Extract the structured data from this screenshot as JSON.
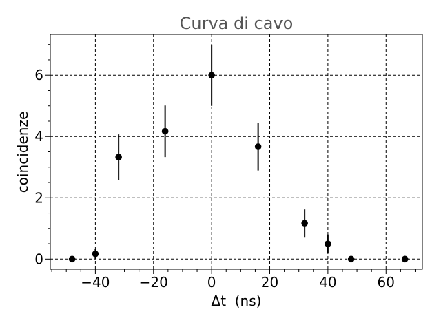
{
  "chart_data": {
    "type": "scatter",
    "title": "Curva di cavo",
    "xlabel": "Δt  (ns)",
    "ylabel": "coincidenze",
    "xlim": [
      -55.5,
      72.5
    ],
    "ylim": [
      -0.33,
      7.33
    ],
    "xticks": [
      -40,
      -20,
      0,
      20,
      40,
      60
    ],
    "xtick_labels": [
      "−40",
      "−20",
      "0",
      "20",
      "40",
      "60"
    ],
    "yticks": [
      0,
      2,
      4,
      6
    ],
    "ytick_labels": [
      "0",
      "2",
      "4",
      "6"
    ],
    "x_minor_step": 5,
    "y_minor_step": 0.5,
    "grid": true,
    "marker_color": "#000000",
    "points": [
      {
        "x": -48,
        "y": 0.0,
        "yerr": 0.0
      },
      {
        "x": -40,
        "y": 0.17,
        "yerr": 0.17
      },
      {
        "x": -32,
        "y": 3.33,
        "yerr": 0.74
      },
      {
        "x": -16,
        "y": 4.17,
        "yerr": 0.84
      },
      {
        "x": 0,
        "y": 6.0,
        "yerr": 1.0
      },
      {
        "x": 16,
        "y": 3.67,
        "yerr": 0.78
      },
      {
        "x": 32,
        "y": 1.17,
        "yerr": 0.45
      },
      {
        "x": 40,
        "y": 0.5,
        "yerr": 0.3
      },
      {
        "x": 48,
        "y": 0.0,
        "yerr": 0.0
      },
      {
        "x": 66.5,
        "y": 0.0,
        "yerr": 0.0
      }
    ]
  }
}
